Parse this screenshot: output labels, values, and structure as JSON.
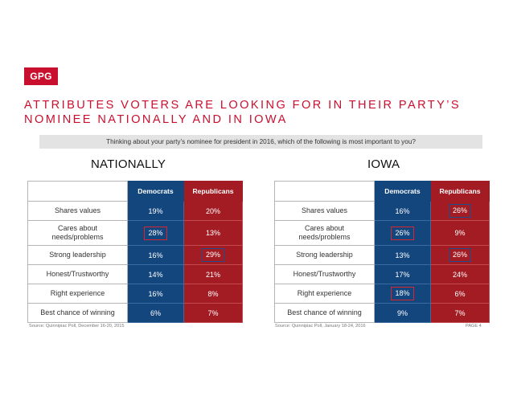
{
  "logo": "GPG",
  "title": {
    "line1": "ATTRIBUTES VOTERS ARE LOOKING FOR IN THEIR PARTY’S",
    "line2": "NOMINEE NATIONALLY AND IN IOWA"
  },
  "question": "Thinking about your party’s nominee for president in 2016, which of the following is most important to you?",
  "columns": {
    "dem": "Democrats",
    "rep": "Republicans"
  },
  "national": {
    "title": "NATIONALLY",
    "rows": [
      {
        "label": "Shares values",
        "dem": "19%",
        "rep": "20%"
      },
      {
        "label": "Cares about needs/problems",
        "dem": "28%",
        "rep": "13%"
      },
      {
        "label": "Strong leadership",
        "dem": "16%",
        "rep": "29%"
      },
      {
        "label": "Honest/Trustworthy",
        "dem": "14%",
        "rep": "21%"
      },
      {
        "label": "Right experience",
        "dem": "16%",
        "rep": "8%"
      },
      {
        "label": "Best chance of winning",
        "dem": "6%",
        "rep": "7%"
      }
    ],
    "source": "Source: Quinnipiac Poll, December 16-20, 2015"
  },
  "iowa": {
    "title": "IOWA",
    "rows": [
      {
        "label": "Shares values",
        "dem": "16%",
        "rep": "26%"
      },
      {
        "label": "Cares about needs/problems",
        "dem": "26%",
        "rep": "9%"
      },
      {
        "label": "Strong leadership",
        "dem": "13%",
        "rep": "26%"
      },
      {
        "label": "Honest/Trustworthy",
        "dem": "17%",
        "rep": "24%"
      },
      {
        "label": "Right experience",
        "dem": "18%",
        "rep": "6%"
      },
      {
        "label": "Best chance of winning",
        "dem": "9%",
        "rep": "7%"
      }
    ],
    "source": "Source: Quinnipiac Poll, January 18-24, 2016"
  },
  "page": "PAGE 4",
  "colors": {
    "brand_red": "#c8102e",
    "democrat_blue": "#14467e",
    "republican_red": "#a31c24"
  }
}
